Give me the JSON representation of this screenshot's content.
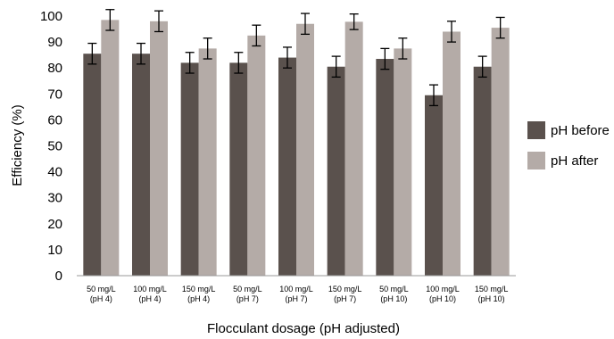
{
  "chart_data": {
    "type": "bar",
    "xlabel": "Flocculant dosage (pH adjusted)",
    "ylabel": "Efficiency (%)",
    "ylim": [
      0,
      100
    ],
    "yticks": [
      0,
      10,
      20,
      30,
      40,
      50,
      60,
      70,
      80,
      90,
      100
    ],
    "grid": false,
    "legend_position": "right",
    "categories": [
      [
        "50 mg/L",
        "(pH 4)"
      ],
      [
        "100 mg/L",
        "(pH 4)"
      ],
      [
        "150 mg/L",
        "(pH 4)"
      ],
      [
        "50 mg/L",
        "(pH 7)"
      ],
      [
        "100 mg/L",
        "(pH 7)"
      ],
      [
        "150 mg/L",
        "(pH 7)"
      ],
      [
        "50 mg/L",
        "(pH 10)"
      ],
      [
        "100 mg/L",
        "(pH 10)"
      ],
      [
        "150 mg/L",
        "(pH 10)"
      ]
    ],
    "series": [
      {
        "name": "pH before",
        "color": "#5a514d",
        "values": [
          85.5,
          85.5,
          82,
          82,
          84,
          80.5,
          83.5,
          69.5,
          80.5
        ],
        "errors": [
          4,
          4,
          4,
          4,
          4,
          4,
          4,
          4,
          4
        ]
      },
      {
        "name": "pH after",
        "color": "#b4aba7",
        "values": [
          98.5,
          98,
          87.5,
          92.5,
          97,
          97.8,
          87.5,
          94,
          95.5
        ],
        "errors": [
          4,
          4,
          4,
          4,
          4,
          3,
          4,
          4,
          4
        ]
      }
    ]
  }
}
